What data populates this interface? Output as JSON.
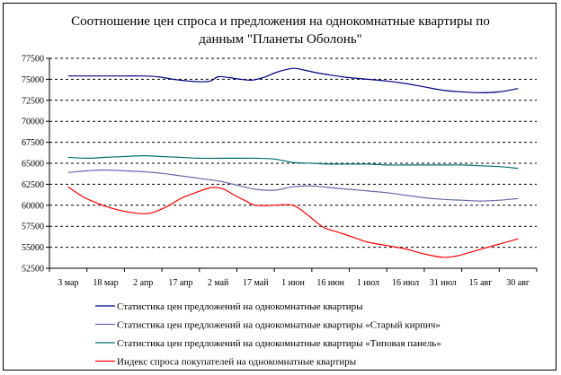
{
  "chart_data": {
    "type": "line",
    "title_line1": "Соотношение цен спроса и предложения на однокомнатные квартиры по",
    "title_line2": "данным \"Планеты Оболонь\"",
    "categories": [
      "3 мар",
      "18 мар",
      "2 апр",
      "17 апр",
      "2 май",
      "17 май",
      "1 июн",
      "16 июн",
      "1 июл",
      "16 июл",
      "31 июл",
      "15 авг",
      "30 авг"
    ],
    "ylim": [
      52500,
      77500
    ],
    "yticks": [
      52500,
      55000,
      57500,
      60000,
      62500,
      65000,
      67500,
      70000,
      72500,
      75000,
      77500
    ],
    "grid": "dashed horizontal",
    "legend_position": "bottom",
    "series": [
      {
        "name": "Статистика цен предложений на однокомнатные квартиры",
        "color": "#000080",
        "x": [
          0,
          0.5,
          1,
          1.5,
          2,
          2.4,
          2.8,
          3.2,
          3.5,
          3.8,
          4,
          4.3,
          4.6,
          4.9,
          5.2,
          5.6,
          6,
          6.3,
          6.6,
          7,
          7.5,
          8,
          8.5,
          9,
          9.5,
          10,
          10.5,
          11,
          11.5,
          12
        ],
        "values": [
          75400,
          75400,
          75400,
          75400,
          75400,
          75300,
          75000,
          74800,
          74700,
          74800,
          75300,
          75200,
          75000,
          74900,
          75200,
          75900,
          76300,
          76100,
          75800,
          75500,
          75200,
          75000,
          74800,
          74500,
          74100,
          73700,
          73500,
          73400,
          73500,
          73900
        ]
      },
      {
        "name": "Статистика цен предложений на однокомнатные квартиры «Старый кирпич»",
        "color": "#6666aa",
        "x": [
          0,
          0.5,
          1,
          1.5,
          2,
          2.5,
          3,
          3.5,
          4,
          4.5,
          5,
          5.5,
          6,
          6.5,
          7,
          7.5,
          8,
          8.5,
          9,
          9.5,
          10,
          10.5,
          11,
          11.5,
          12
        ],
        "values": [
          63900,
          64100,
          64200,
          64100,
          64000,
          63800,
          63500,
          63200,
          62900,
          62400,
          61900,
          61800,
          62200,
          62300,
          62100,
          61900,
          61700,
          61500,
          61200,
          60900,
          60700,
          60600,
          60500,
          60600,
          60800
        ]
      },
      {
        "name": "Статистика цен предложений на однокомнатные квартиры «Типовая панель»",
        "color": "#007070",
        "x": [
          0,
          0.5,
          1,
          1.5,
          2,
          2.5,
          3,
          3.5,
          4,
          4.5,
          5,
          5.5,
          6,
          6.5,
          7,
          7.5,
          8,
          8.5,
          9,
          9.5,
          10,
          10.5,
          11,
          11.5,
          12
        ],
        "values": [
          65700,
          65600,
          65700,
          65800,
          65900,
          65800,
          65700,
          65600,
          65600,
          65600,
          65600,
          65500,
          65100,
          65000,
          64900,
          64900,
          64900,
          64800,
          64800,
          64800,
          64800,
          64800,
          64700,
          64600,
          64400
        ]
      },
      {
        "name": "Индекс спроса покупателей на однокомнатные квартиры",
        "color": "#ff0000",
        "x": [
          0,
          0.4,
          0.8,
          1.2,
          1.6,
          2,
          2.3,
          2.7,
          3,
          3.4,
          3.8,
          4.1,
          4.4,
          4.7,
          5,
          5.5,
          6,
          6.4,
          6.8,
          7.2,
          7.6,
          8,
          8.5,
          9,
          9.5,
          10,
          10.4,
          10.8,
          11.2,
          11.6,
          12
        ],
        "values": [
          62200,
          61000,
          60200,
          59600,
          59200,
          59000,
          59200,
          60000,
          60800,
          61500,
          62100,
          62000,
          61300,
          60600,
          60000,
          60000,
          60000,
          58800,
          57400,
          56800,
          56200,
          55600,
          55200,
          54800,
          54200,
          53800,
          54000,
          54500,
          55000,
          55500,
          56000
        ]
      }
    ]
  }
}
